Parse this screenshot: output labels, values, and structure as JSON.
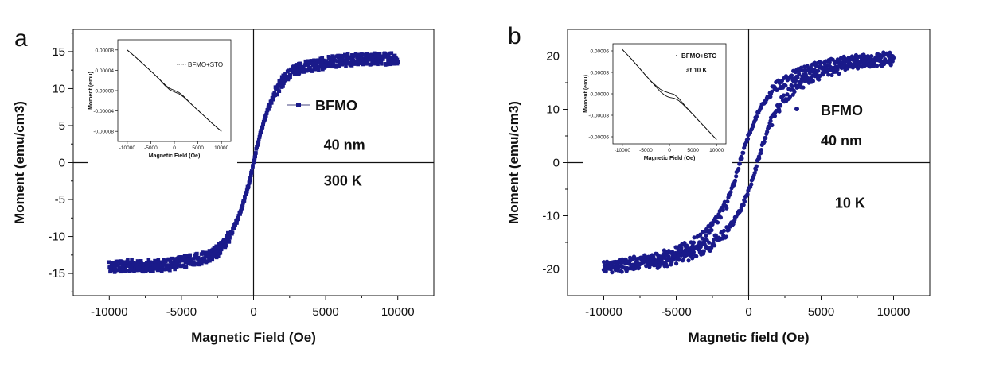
{
  "colors": {
    "series": "#1a1a8a",
    "highlight": "#e0201e",
    "axis": "#111111"
  },
  "chart_data": [
    {
      "type": "scatter",
      "panel_label": "a",
      "title": "",
      "xlabel": "Magnetic Field (Oe)",
      "ylabel": "Moment (emu/cm3)",
      "xlim": [
        -12500,
        12500
      ],
      "ylim": [
        -18,
        18
      ],
      "xticks": [
        -10000,
        -5000,
        0,
        5000,
        10000
      ],
      "xtick_labels": [
        "-10000",
        "-5000",
        "0",
        "5000",
        "10000"
      ],
      "yticks": [
        -15,
        -10,
        -5,
        0,
        5,
        10,
        15
      ],
      "ytick_labels": [
        "-15",
        "-10",
        "-5",
        "0",
        "5",
        "10",
        "15"
      ],
      "series": [
        {
          "name": "BFMO",
          "marker": "square",
          "color": "#1a1a8a",
          "x": [
            -10000,
            -9500,
            -9000,
            -8500,
            -8000,
            -7500,
            -7000,
            -6500,
            -6000,
            -5500,
            -5000,
            -4500,
            -4000,
            -3500,
            -3000,
            -2500,
            -2000,
            -1750,
            -1500,
            -1250,
            -1000,
            -800,
            -600,
            -400,
            -200,
            0,
            200,
            400,
            600,
            800,
            1000,
            1250,
            1500,
            1750,
            2000,
            2500,
            3000,
            3500,
            4000,
            4500,
            5000,
            5500,
            6000,
            6500,
            7000,
            7500,
            8000,
            8500,
            9000,
            9500,
            10000
          ],
          "y": [
            -14.0,
            -14.1,
            -14.0,
            -13.9,
            -14.1,
            -14.0,
            -13.9,
            -13.8,
            -13.9,
            -13.7,
            -13.5,
            -13.2,
            -13.1,
            -12.9,
            -12.6,
            -12.0,
            -11.0,
            -10.2,
            -9.4,
            -8.3,
            -7.2,
            -6.0,
            -4.8,
            -3.4,
            -1.8,
            0.0,
            1.8,
            3.4,
            4.8,
            6.0,
            7.2,
            8.3,
            9.4,
            10.2,
            11.0,
            12.0,
            12.6,
            12.9,
            13.1,
            13.3,
            13.5,
            13.6,
            13.8,
            13.9,
            13.9,
            14.0,
            14.0,
            14.1,
            14.0,
            14.0,
            14.1
          ],
          "noise": 0.8
        }
      ],
      "legend": {
        "label": "BFMO",
        "position": "right"
      },
      "annotations": [
        {
          "text": "40 nm",
          "x": 6300,
          "y": 1.7,
          "color": "#111111"
        },
        {
          "text": "300 K",
          "x": 6200,
          "y": -3.1,
          "color": "#e0201e"
        }
      ],
      "inset": {
        "xlabel": "Magnetic Field (Oe)",
        "ylabel": "Moment (emu)",
        "xlim": [
          -12000,
          12000
        ],
        "ylim": [
          -0.0001,
          0.0001
        ],
        "xticks": [
          -10000,
          -5000,
          0,
          5000,
          10000
        ],
        "xtick_labels": [
          "-10000",
          "-5000",
          "0",
          "5000",
          "10000"
        ],
        "yticks": [
          -8e-05,
          -4e-05,
          0,
          4e-05,
          8e-05
        ],
        "ytick_labels": [
          "-0.00008",
          "-0.00004",
          "0.00000",
          "0.00004",
          "0.00008"
        ],
        "legend": {
          "label": "BFMO+STO",
          "position": "top-right"
        },
        "x": [
          -10000,
          -8000,
          -6000,
          -4000,
          -2000,
          -1000,
          0,
          1000,
          2000,
          4000,
          6000,
          8000,
          10000
        ],
        "y": [
          8e-05,
          6.4e-05,
          4.7e-05,
          3e-05,
          1.1e-05,
          3e-06,
          -1e-06,
          -5e-06,
          -1.2e-05,
          -3e-05,
          -4.7e-05,
          -6.4e-05,
          -8e-05
        ]
      }
    },
    {
      "type": "scatter",
      "panel_label": "b",
      "title": "",
      "xlabel": "Magnetic field (Oe)",
      "ylabel": "Moment (emu/cm3)",
      "xlim": [
        -12500,
        12500
      ],
      "ylim": [
        -25,
        25
      ],
      "xticks": [
        -10000,
        -5000,
        0,
        5000,
        10000
      ],
      "xtick_labels": [
        "-10000",
        "-5000",
        "0",
        "5000",
        "10000"
      ],
      "yticks": [
        -20,
        -10,
        0,
        10,
        20
      ],
      "ytick_labels": [
        "-20",
        "-10",
        "0",
        "10",
        "20"
      ],
      "series": [
        {
          "name": "BFMO",
          "marker": "circle",
          "color": "#1a1a8a",
          "x": [
            -10000,
            -9500,
            -9000,
            -8500,
            -8000,
            -7500,
            -7000,
            -6500,
            -6000,
            -5500,
            -5000,
            -4500,
            -4000,
            -3500,
            -3000,
            -2500,
            -2000,
            -1750,
            -1500,
            -1250,
            -1000,
            -800,
            -600,
            -400,
            -200,
            0,
            200,
            400,
            600,
            800,
            1000,
            1250,
            1500,
            1750,
            2000,
            2500,
            3000,
            3500,
            4000,
            4500,
            5000,
            5500,
            6000,
            6500,
            7000,
            7500,
            8000,
            8500,
            9000,
            9500,
            10000
          ],
          "y": [
            -19.5,
            -19.4,
            -19.3,
            -19.2,
            -19.0,
            -18.9,
            -18.7,
            -18.5,
            -18.2,
            -17.8,
            -17.5,
            -17.0,
            -16.5,
            -15.8,
            -15.0,
            -14.0,
            -12.5,
            -11.5,
            -10.5,
            -9.3,
            -8.0,
            -6.6,
            -5.2,
            -3.6,
            -1.8,
            0.0,
            1.8,
            3.6,
            5.2,
            6.6,
            8.0,
            9.3,
            10.5,
            11.5,
            12.5,
            14.0,
            15.0,
            15.8,
            16.5,
            17.0,
            17.5,
            17.8,
            18.2,
            18.5,
            18.7,
            18.9,
            19.0,
            19.2,
            19.3,
            19.4,
            19.5
          ],
          "loop_offset": 600,
          "noise": 1.2
        }
      ],
      "legend": {
        "label": "BFMO",
        "position": "right"
      },
      "annotations": [
        {
          "text": "40 nm",
          "x": 6400,
          "y": 3.2,
          "color": "#111111"
        },
        {
          "text": "10 K",
          "x": 7000,
          "y": -8.5,
          "color": "#e0201e"
        }
      ],
      "inset": {
        "xlabel": "Magnetic Field (Oe)",
        "ylabel": "Moment (emu)",
        "xlim": [
          -12000,
          12000
        ],
        "ylim": [
          -7e-05,
          7e-05
        ],
        "xticks": [
          -10000,
          -5000,
          0,
          5000,
          10000
        ],
        "xtick_labels": [
          "-10000",
          "-5000",
          "0",
          "5000",
          "10000"
        ],
        "yticks": [
          -6e-05,
          -3e-05,
          0,
          3e-05,
          6e-05
        ],
        "ytick_labels": [
          "-0.00006",
          "-0.00003",
          "0.00000",
          "0.00003",
          "0.00006"
        ],
        "legend": {
          "label": "BFMO+STO",
          "position": "top-right"
        },
        "legend_note": "at 10 K",
        "x": [
          -10000,
          -8000,
          -6000,
          -4000,
          -2000,
          -1000,
          0,
          1000,
          2000,
          4000,
          6000,
          8000,
          10000
        ],
        "y": [
          6.2e-05,
          4.8e-05,
          3.3e-05,
          1.8e-05,
          5e-06,
          5e-07,
          -2e-06,
          -3.5e-06,
          -8e-06,
          -2.2e-05,
          -3.6e-05,
          -5e-05,
          -6.4e-05
        ]
      }
    }
  ]
}
